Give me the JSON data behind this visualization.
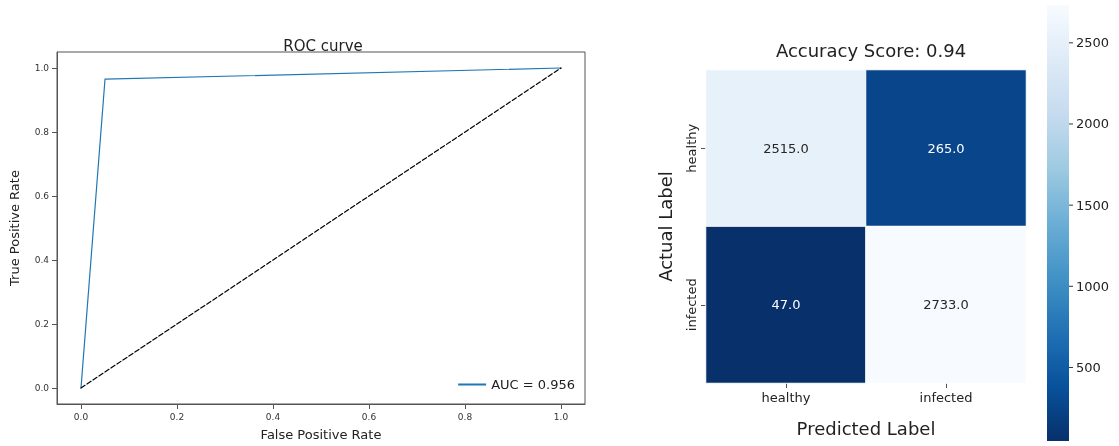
{
  "chart_data": [
    {
      "type": "line",
      "title": "ROC curve",
      "xlabel": "False Positive Rate",
      "ylabel": "True Positive Rate",
      "xlim": [
        -0.05,
        1.05
      ],
      "ylim": [
        -0.05,
        1.05
      ],
      "xticks": [
        {
          "value": 0,
          "label": "0.0"
        },
        0.2,
        0.4,
        0.6,
        0.8,
        {
          "value": 1,
          "label": "1.0"
        }
      ],
      "yticks": [
        {
          "value": 0,
          "label": "0.0"
        },
        0.2,
        0.4,
        0.6,
        0.8,
        {
          "value": 1,
          "label": "1.0"
        }
      ],
      "legend": "bottom right",
      "grid": false,
      "marker": "none",
      "series": [
        {
          "name": "AUC = 0.956",
          "color": "#1f77b4",
          "x": [
            0,
            0.05,
            1
          ],
          "values": [
            0,
            0.965,
            1
          ]
        },
        {
          "color": "#000000",
          "x": [
            0,
            1
          ],
          "values": [
            0,
            1
          ],
          "line_style": "dashed"
        }
      ]
    },
    {
      "type": "heatmap",
      "title": "Accuracy Score: 0.94",
      "xlabel": "Predicted Label",
      "ylabel": "Actual Label",
      "categories": [
        "healthy",
        "infected"
      ],
      "y_categories": [
        "healthy",
        "infected"
      ],
      "cells": [
        [
          2515,
          265
        ],
        [
          47,
          2733
        ]
      ],
      "cell_labels": [
        [
          "2515.0",
          "265.0"
        ],
        [
          "47.0",
          "2733.0"
        ]
      ],
      "clim": [
        47,
        2733
      ],
      "cticks": [
        500,
        1000,
        1500,
        2000,
        2500
      ]
    }
  ]
}
